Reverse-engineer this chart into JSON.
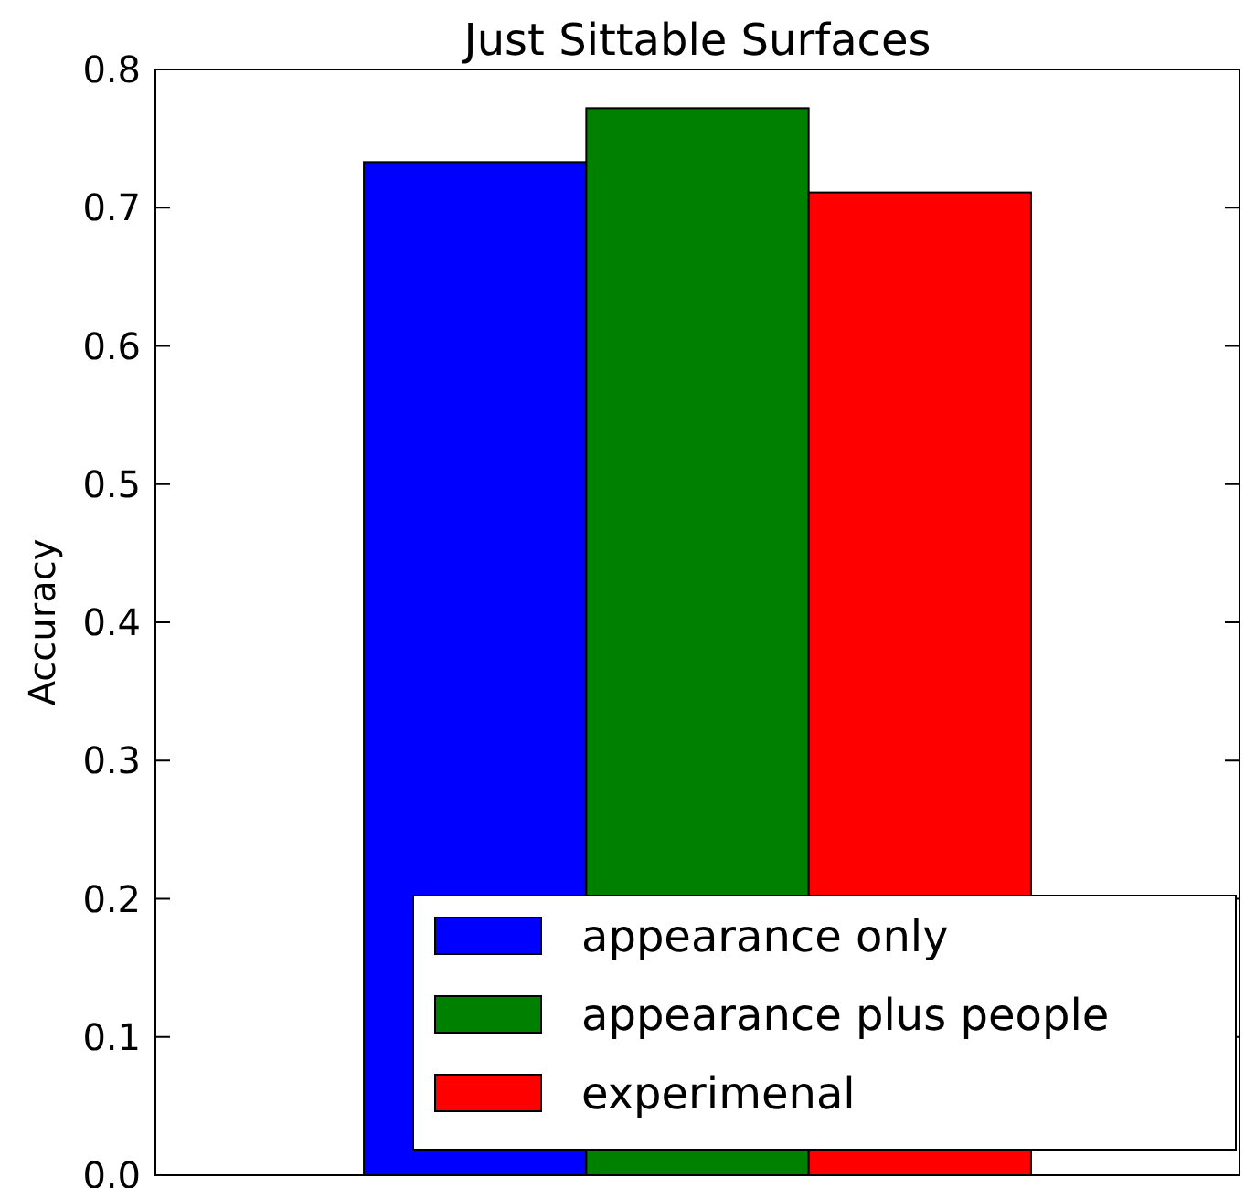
{
  "chart_data": {
    "type": "bar",
    "title": "Just Sittable Surfaces",
    "ylabel": "Accuracy",
    "categories": [
      null
    ],
    "series": [
      {
        "name": "appearance only",
        "color": "#0000ff",
        "values": [
          0.733
        ]
      },
      {
        "name": "appearance plus people",
        "color": "#008000",
        "values": [
          0.772
        ]
      },
      {
        "name": "experimenal",
        "color": "#ff0000",
        "values": [
          0.711
        ]
      }
    ],
    "ylim": [
      0,
      0.8
    ],
    "yticks": [
      {
        "value": 0,
        "label": "0.0"
      },
      {
        "value": 0.1,
        "label": "0.1"
      },
      {
        "value": 0.2,
        "label": "0.2"
      },
      {
        "value": 0.3,
        "label": "0.3"
      },
      {
        "value": 0.4,
        "label": "0.4"
      },
      {
        "value": 0.5,
        "label": "0.5"
      },
      {
        "value": 0.6,
        "label": "0.6"
      },
      {
        "value": 0.7,
        "label": "0.7"
      },
      {
        "value": 0.8,
        "label": "0.8"
      }
    ],
    "grid": false,
    "legend": "bottom right",
    "tick_labels": "y"
  }
}
